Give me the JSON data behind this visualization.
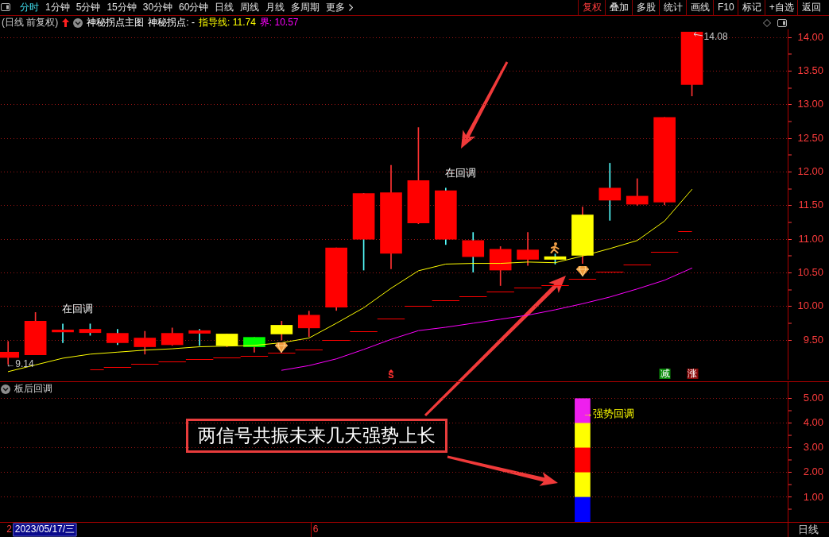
{
  "chart_data": [
    {
      "type": "other",
      "annotations": [
        "分时",
        "1分钟",
        "5分钟",
        "15分钟",
        "30分钟",
        "60分钟",
        "日线",
        "周线",
        "月线",
        "多周期",
        "更多"
      ]
    },
    {
      "type": "other",
      "annotations": [
        "复权",
        "叠加",
        "多股",
        "统计",
        "画线",
        "F10",
        "标记",
        "+自选",
        "返回"
      ]
    },
    {
      "type": "candlestick",
      "title": "(日线 前复权)",
      "subtitle": "神秘拐点主图",
      "categories": [
        null,
        null,
        null,
        null,
        null,
        null,
        null,
        null,
        null,
        null,
        null,
        null,
        null,
        null,
        null,
        null,
        null,
        null,
        null,
        null,
        null,
        null,
        null,
        null,
        null,
        null,
        null,
        null,
        null
      ],
      "series": [
        {
          "type": "candlestick",
          "color": "#ff3232",
          "ohlc": [
            [
              9.24,
              9.48,
              9.14,
              9.32
            ],
            [
              9.28,
              9.91,
              9.28,
              9.78
            ],
            null,
            null,
            null,
            [
              9.4,
              9.63,
              9.29,
              9.53
            ],
            [
              9.43,
              9.68,
              9.42,
              9.6
            ],
            null,
            [
              9.42,
              9.59,
              9.4,
              9.59
            ],
            [
              9.4,
              9.54,
              9.32,
              9.54
            ],
            [
              9.59,
              9.78,
              9.5,
              9.72
            ],
            [
              9.68,
              9.93,
              9.55,
              9.87
            ],
            [
              9.99,
              10.87,
              9.94,
              10.87
            ],
            null,
            [
              10.79,
              12.1,
              10.56,
              11.69
            ],
            [
              11.24,
              12.66,
              11.23,
              11.87
            ],
            null,
            null,
            [
              10.54,
              10.89,
              10.31,
              10.85
            ],
            [
              10.7,
              11.1,
              10.61,
              10.84
            ],
            null,
            [
              10.76,
              11.48,
              10.64,
              11.36
            ],
            null,
            [
              11.52,
              11.9,
              11.5,
              11.64
            ],
            [
              11.55,
              12.81,
              11.51,
              12.81
            ],
            [
              13.3,
              14.08,
              13.13,
              14.08
            ],
            null,
            null,
            null
          ],
          "colors": [
            "#ff0000",
            "#ff0000",
            null,
            null,
            null,
            "#ff0000",
            "#ff0000",
            null,
            "#ffff00",
            "#00ff00",
            "#ffff00",
            "#ff0000",
            "#ff0000",
            null,
            "#ff0000",
            "#ff0000",
            null,
            null,
            "#ff0000",
            "#ff0000",
            null,
            "#ffff00",
            null,
            "#ff0000",
            "#ff0000",
            "#ff0000",
            null,
            null,
            null
          ]
        },
        {
          "type": "candlestick",
          "color": "#54fcfc",
          "ohlc": [
            null,
            null,
            [
              9.65,
              9.74,
              9.46,
              9.62
            ],
            [
              9.66,
              9.74,
              9.57,
              9.61
            ],
            [
              9.6,
              9.66,
              9.43,
              9.46
            ],
            null,
            null,
            [
              9.64,
              9.66,
              9.42,
              9.6
            ],
            null,
            null,
            null,
            null,
            null,
            [
              11.68,
              11.68,
              10.54,
              11.0
            ],
            null,
            null,
            [
              11.72,
              11.76,
              10.92,
              11.0
            ],
            [
              10.98,
              11.1,
              10.51,
              10.74
            ],
            null,
            null,
            [
              10.74,
              10.78,
              10.63,
              10.7
            ],
            null,
            [
              11.76,
              12.13,
              11.28,
              11.58
            ],
            null,
            null,
            null,
            null,
            null,
            null
          ],
          "colors": [
            null,
            null,
            "#ff0000",
            "#ff0000",
            "#ff0000",
            null,
            null,
            "#ff0000",
            null,
            null,
            null,
            null,
            null,
            "#ff0000",
            null,
            null,
            "#ff0000",
            "#ff0000",
            null,
            null,
            "#ffff00",
            null,
            "#ff0000",
            null,
            null,
            null,
            null,
            null,
            null
          ]
        },
        {
          "type": "line",
          "name": "指导线: 11.74",
          "color": "#ffff00",
          "values": [
            9.03,
            9.13,
            9.23,
            9.29,
            9.32,
            9.35,
            9.37,
            9.4,
            9.41,
            9.42,
            9.46,
            9.53,
            9.75,
            9.98,
            10.27,
            10.53,
            10.63,
            10.64,
            10.64,
            10.66,
            10.65,
            10.75,
            10.86,
            10.98,
            11.27,
            11.74,
            null,
            null,
            null
          ]
        },
        {
          "type": "line",
          "name": "界: 10.57",
          "color": "#ff00ff",
          "values": [
            null,
            null,
            null,
            null,
            null,
            null,
            null,
            null,
            null,
            null,
            9.05,
            9.12,
            9.22,
            9.36,
            9.51,
            9.64,
            9.69,
            9.75,
            9.81,
            9.87,
            9.95,
            10.04,
            10.14,
            10.26,
            10.39,
            10.57,
            null,
            null,
            null
          ]
        },
        {
          "type": "step",
          "color": "#ff0000",
          "values": [
            null,
            null,
            null,
            9.06,
            9.1,
            9.15,
            9.18,
            9.22,
            9.24,
            9.26,
            9.31,
            9.36,
            9.5,
            9.63,
            9.82,
            10.01,
            10.09,
            10.15,
            10.22,
            10.28,
            10.32,
            10.41,
            10.52,
            10.62,
            10.81,
            11.12,
            null,
            null,
            null
          ]
        }
      ],
      "ylim": [
        8.91,
        14.12
      ],
      "yticks": [
        {
          "value": 9.5,
          "label": "9.50"
        },
        {
          "value": 9.75,
          "label": null
        },
        {
          "value": 10,
          "label": "10.00"
        },
        {
          "value": 10.25,
          "label": null
        },
        {
          "value": 10.5,
          "label": "10.50"
        },
        {
          "value": 10.75,
          "label": null
        },
        {
          "value": 11,
          "label": "11.00"
        },
        {
          "value": 11.25,
          "label": null
        },
        {
          "value": 11.5,
          "label": "11.50"
        },
        {
          "value": 11.75,
          "label": null
        },
        {
          "value": 12,
          "label": "12.00"
        },
        {
          "value": 12.25,
          "label": null
        },
        {
          "value": 12.5,
          "label": "12.50"
        },
        {
          "value": 12.75,
          "label": null
        },
        {
          "value": 13,
          "label": "13.00"
        },
        {
          "value": 13.25,
          "label": null
        },
        {
          "value": 13.5,
          "label": "13.50"
        },
        {
          "value": 13.75,
          "label": null
        },
        {
          "value": 14,
          "label": "14.00"
        }
      ],
      "grid": "y",
      "tick_labels": "y",
      "annotations": [
        "神秘拐点: -",
        "在回调",
        "在回调",
        "←9.14",
        "14.08",
        "S",
        "减",
        "涨"
      ]
    },
    {
      "type": "bar",
      "title": "板后回调",
      "categories": [
        null,
        null,
        null,
        null,
        null,
        null,
        null,
        null,
        null,
        null,
        null,
        null,
        null,
        null,
        null,
        null,
        null,
        null,
        null,
        null,
        null,
        null,
        null,
        null,
        null,
        null,
        null,
        null,
        null
      ],
      "stacked": true,
      "series": [
        {
          "color": "#0000ff",
          "values": [
            null,
            null,
            null,
            null,
            null,
            null,
            null,
            null,
            null,
            null,
            null,
            null,
            null,
            null,
            null,
            null,
            null,
            null,
            null,
            null,
            null,
            1,
            null,
            null,
            null,
            null,
            null,
            null,
            null
          ]
        },
        {
          "color": "#ffff00",
          "values": [
            null,
            null,
            null,
            null,
            null,
            null,
            null,
            null,
            null,
            null,
            null,
            null,
            null,
            null,
            null,
            null,
            null,
            null,
            null,
            null,
            null,
            1,
            null,
            null,
            null,
            null,
            null,
            null,
            null
          ]
        },
        {
          "color": "#ff0000",
          "values": [
            null,
            null,
            null,
            null,
            null,
            null,
            null,
            null,
            null,
            null,
            null,
            null,
            null,
            null,
            null,
            null,
            null,
            null,
            null,
            null,
            null,
            1,
            null,
            null,
            null,
            null,
            null,
            null,
            null
          ]
        },
        {
          "color": "#ffff00",
          "values": [
            null,
            null,
            null,
            null,
            null,
            null,
            null,
            null,
            null,
            null,
            null,
            null,
            null,
            null,
            null,
            null,
            null,
            null,
            null,
            null,
            null,
            1,
            null,
            null,
            null,
            null,
            null,
            null,
            null
          ]
        },
        {
          "color": "#ee1fee",
          "values": [
            null,
            null,
            null,
            null,
            null,
            null,
            null,
            null,
            null,
            null,
            null,
            null,
            null,
            null,
            null,
            null,
            null,
            null,
            null,
            null,
            null,
            1,
            null,
            null,
            null,
            null,
            null,
            null,
            null
          ]
        }
      ],
      "ylim": [
        0,
        5.7
      ],
      "yticks": [
        {
          "value": 0.5,
          "label": null
        },
        {
          "value": 1,
          "label": "1.00"
        },
        {
          "value": 1.5,
          "label": null
        },
        {
          "value": 2,
          "label": "2.00"
        },
        {
          "value": 2.5,
          "label": null
        },
        {
          "value": 3,
          "label": "3.00"
        },
        {
          "value": 3.5,
          "label": null
        },
        {
          "value": 4,
          "label": "4.00"
        },
        {
          "value": 4.5,
          "label": null
        },
        {
          "value": 5,
          "label": "5.00"
        }
      ],
      "grid": "y",
      "tick_labels": "y",
      "annotations": [
        "→强势回调",
        "两信号共振未来几天强势上长",
        "2",
        "2023/05/17/三",
        "6",
        "日线"
      ]
    }
  ]
}
